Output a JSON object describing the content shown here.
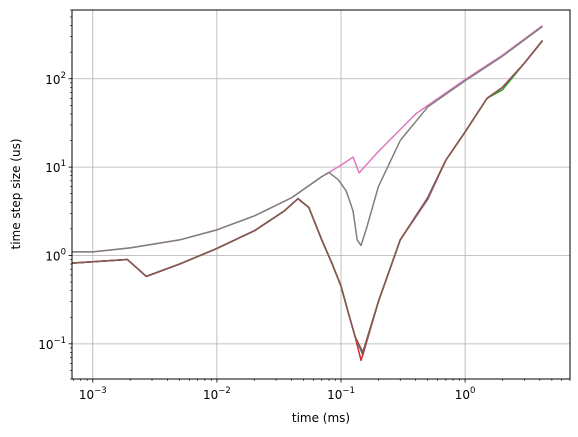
{
  "chart_data": {
    "type": "line",
    "xlabel": "time (ms)",
    "ylabel": "time step size (us)",
    "xscale": "log",
    "yscale": "log",
    "xlim": [
      0.00068,
      7.0
    ],
    "ylim": [
      0.04,
      600
    ],
    "grid": true,
    "x_ticks": [
      {
        "value": 0.001,
        "base": "10",
        "exp": "−3"
      },
      {
        "value": 0.01,
        "base": "10",
        "exp": "−2"
      },
      {
        "value": 0.1,
        "base": "10",
        "exp": "−1"
      },
      {
        "value": 1,
        "base": "10",
        "exp": "0"
      }
    ],
    "y_ticks": [
      {
        "value": 0.1,
        "base": "10",
        "exp": "−1"
      },
      {
        "value": 1,
        "base": "10",
        "exp": "0"
      },
      {
        "value": 10,
        "base": "10",
        "exp": "1"
      },
      {
        "value": 100,
        "base": "10",
        "exp": "2"
      }
    ],
    "series": [
      {
        "color": "#e377c2",
        "x": [
          0.00068,
          0.001,
          0.002,
          0.005,
          0.01,
          0.02,
          0.04,
          0.07,
          0.1,
          0.125,
          0.14,
          0.2,
          0.4,
          1.0,
          2.0,
          4.2
        ],
        "y": [
          1.1,
          1.1,
          1.22,
          1.5,
          1.95,
          2.8,
          4.5,
          7.8,
          10.5,
          13.0,
          8.6,
          15.0,
          40,
          98,
          185,
          400
        ]
      },
      {
        "color": "#7f7f7f",
        "x": [
          0.00068,
          0.001,
          0.002,
          0.005,
          0.01,
          0.02,
          0.04,
          0.07,
          0.08,
          0.095,
          0.11,
          0.125,
          0.135,
          0.145,
          0.16,
          0.2,
          0.3,
          0.5,
          1.0,
          2.0,
          4.2
        ],
        "y": [
          1.1,
          1.1,
          1.22,
          1.5,
          1.95,
          2.8,
          4.5,
          7.8,
          8.7,
          7.2,
          5.4,
          3.2,
          1.5,
          1.3,
          2.0,
          6.0,
          20,
          48,
          95,
          180,
          390
        ]
      },
      {
        "color": "#1f77b4",
        "x": [
          0.00068,
          0.0019,
          0.0027,
          0.005,
          0.01,
          0.02,
          0.035,
          0.045,
          0.055,
          0.07,
          0.085,
          0.1,
          0.115,
          0.13,
          0.15,
          0.2,
          0.3,
          0.5,
          0.7,
          1.0,
          1.5,
          2.0,
          3.0,
          4.2
        ],
        "y": [
          0.82,
          0.9,
          0.58,
          0.8,
          1.2,
          1.9,
          3.2,
          4.4,
          3.5,
          1.5,
          0.8,
          0.45,
          0.22,
          0.12,
          0.075,
          0.3,
          1.5,
          4.5,
          12,
          25,
          60,
          80,
          150,
          270
        ]
      },
      {
        "color": "#d62728",
        "x": [
          0.00068,
          0.0019,
          0.0027,
          0.005,
          0.01,
          0.02,
          0.035,
          0.045,
          0.055,
          0.07,
          0.085,
          0.1,
          0.115,
          0.13,
          0.145,
          0.2,
          0.3,
          0.5,
          0.7,
          1.0,
          1.5,
          2.0,
          3.0,
          4.2
        ],
        "y": [
          0.82,
          0.9,
          0.58,
          0.8,
          1.2,
          1.9,
          3.2,
          4.4,
          3.5,
          1.5,
          0.8,
          0.45,
          0.22,
          0.12,
          0.065,
          0.3,
          1.5,
          4.5,
          12,
          25,
          60,
          80,
          150,
          270
        ]
      },
      {
        "color": "#2ca02c",
        "x": [
          0.00068,
          0.0019,
          0.0027,
          0.005,
          0.01,
          0.02,
          0.035,
          0.045,
          0.055,
          0.07,
          0.085,
          0.1,
          0.115,
          0.13,
          0.15,
          0.2,
          0.3,
          0.5,
          0.7,
          1.0,
          1.5,
          2.0,
          3.0,
          4.2
        ],
        "y": [
          0.82,
          0.9,
          0.58,
          0.8,
          1.2,
          1.9,
          3.2,
          4.4,
          3.5,
          1.5,
          0.8,
          0.45,
          0.22,
          0.12,
          0.08,
          0.3,
          1.5,
          4.5,
          12,
          25,
          60,
          75,
          150,
          270
        ]
      },
      {
        "color": "#9467bd",
        "x": [
          0.00068,
          0.0019,
          0.0027,
          0.005,
          0.01,
          0.02,
          0.035,
          0.045,
          0.055,
          0.07,
          0.085,
          0.1,
          0.115,
          0.13,
          0.15,
          0.2,
          0.3,
          0.5,
          0.7,
          1.0,
          1.5,
          2.0,
          3.0,
          4.2
        ],
        "y": [
          0.82,
          0.9,
          0.58,
          0.8,
          1.2,
          1.9,
          3.2,
          4.4,
          3.5,
          1.5,
          0.8,
          0.45,
          0.22,
          0.12,
          0.08,
          0.3,
          1.5,
          4.3,
          12,
          25,
          60,
          80,
          150,
          270
        ]
      },
      {
        "color": "#8c564b",
        "x": [
          0.00068,
          0.0019,
          0.0027,
          0.005,
          0.01,
          0.02,
          0.035,
          0.045,
          0.055,
          0.07,
          0.085,
          0.1,
          0.115,
          0.13,
          0.15,
          0.2,
          0.3,
          0.5,
          0.7,
          1.0,
          1.5,
          2.0,
          3.0,
          4.2
        ],
        "y": [
          0.82,
          0.9,
          0.58,
          0.8,
          1.2,
          1.9,
          3.2,
          4.4,
          3.5,
          1.5,
          0.8,
          0.45,
          0.22,
          0.12,
          0.08,
          0.3,
          1.5,
          4.5,
          12,
          25,
          60,
          80,
          150,
          270
        ]
      }
    ]
  }
}
